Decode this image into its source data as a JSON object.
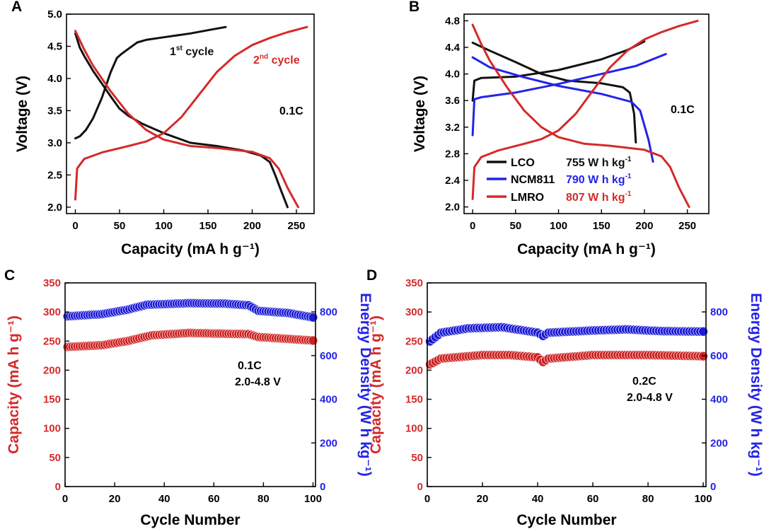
{
  "colors": {
    "black": "#111111",
    "red": "#d42a2a",
    "blue": "#2323e8",
    "red_marker": "#cc2222",
    "blue_marker": "#1b1bd6"
  },
  "chart_data": [
    {
      "id": "A",
      "type": "line",
      "panel_label": "A",
      "xlabel": "Capacity (mA h g⁻¹)",
      "ylabel": "Voltage (V)",
      "xlim": [
        -10,
        270
      ],
      "ylim": [
        1.9,
        5.0
      ],
      "xticks": [
        0,
        50,
        100,
        150,
        200,
        250
      ],
      "xtick_labels": [
        "0",
        "50",
        "100",
        "150",
        "200",
        "250"
      ],
      "yticks": [
        2.0,
        2.5,
        3.0,
        3.5,
        4.0,
        4.5,
        5.0
      ],
      "ytick_labels": [
        "2.0",
        "2.5",
        "3.0",
        "3.5",
        "4.0",
        "4.5",
        "5.0"
      ],
      "annotations": [
        {
          "id": "cycle1",
          "base": "1",
          "sup": "st",
          "tail": " cycle",
          "color": "black"
        },
        {
          "id": "cycle2",
          "base": "2",
          "sup": "nd",
          "tail": " cycle",
          "color": "red"
        },
        {
          "id": "rate",
          "text": "0.1C",
          "color": "black"
        }
      ],
      "series": [
        {
          "name": "1st cycle charge",
          "color": "black",
          "points": [
            [
              0,
              3.07
            ],
            [
              5,
              3.1
            ],
            [
              12,
              3.2
            ],
            [
              20,
              3.38
            ],
            [
              30,
              3.7
            ],
            [
              40,
              4.1
            ],
            [
              47,
              4.32
            ],
            [
              52,
              4.38
            ],
            [
              60,
              4.46
            ],
            [
              70,
              4.56
            ],
            [
              80,
              4.6
            ],
            [
              100,
              4.64
            ],
            [
              130,
              4.7
            ],
            [
              150,
              4.75
            ],
            [
              170,
              4.8
            ]
          ]
        },
        {
          "name": "1st cycle discharge",
          "color": "black",
          "points": [
            [
              0,
              4.7
            ],
            [
              5,
              4.48
            ],
            [
              10,
              4.35
            ],
            [
              20,
              4.12
            ],
            [
              30,
              3.92
            ],
            [
              40,
              3.72
            ],
            [
              50,
              3.53
            ],
            [
              60,
              3.42
            ],
            [
              75,
              3.3
            ],
            [
              100,
              3.15
            ],
            [
              130,
              3.0
            ],
            [
              160,
              2.95
            ],
            [
              190,
              2.88
            ],
            [
              210,
              2.8
            ],
            [
              220,
              2.7
            ],
            [
              226,
              2.5
            ],
            [
              232,
              2.28
            ],
            [
              240,
              2.0
            ]
          ]
        },
        {
          "name": "2nd cycle charge",
          "color": "red",
          "points": [
            [
              0,
              2.12
            ],
            [
              2,
              2.6
            ],
            [
              10,
              2.75
            ],
            [
              30,
              2.85
            ],
            [
              60,
              2.95
            ],
            [
              80,
              3.02
            ],
            [
              100,
              3.15
            ],
            [
              120,
              3.4
            ],
            [
              140,
              3.75
            ],
            [
              160,
              4.1
            ],
            [
              180,
              4.35
            ],
            [
              200,
              4.52
            ],
            [
              220,
              4.63
            ],
            [
              240,
              4.72
            ],
            [
              262,
              4.8
            ]
          ]
        },
        {
          "name": "2nd cycle discharge",
          "color": "red",
          "points": [
            [
              0,
              4.74
            ],
            [
              10,
              4.45
            ],
            [
              20,
              4.2
            ],
            [
              40,
              3.8
            ],
            [
              60,
              3.45
            ],
            [
              80,
              3.2
            ],
            [
              100,
              3.05
            ],
            [
              130,
              2.95
            ],
            [
              160,
              2.92
            ],
            [
              200,
              2.86
            ],
            [
              220,
              2.76
            ],
            [
              230,
              2.6
            ],
            [
              240,
              2.3
            ],
            [
              252,
              2.0
            ]
          ]
        }
      ]
    },
    {
      "id": "B",
      "type": "line",
      "panel_label": "B",
      "xlabel": "Capacity (mA h g⁻¹)",
      "ylabel": "Voltage (V)",
      "xlim": [
        -10,
        275
      ],
      "ylim": [
        1.9,
        4.9
      ],
      "xticks": [
        0,
        50,
        100,
        150,
        200,
        250
      ],
      "xtick_labels": [
        "0",
        "50",
        "100",
        "150",
        "200",
        "250"
      ],
      "yticks": [
        2.0,
        2.4,
        2.8,
        3.2,
        3.6,
        4.0,
        4.4,
        4.8
      ],
      "ytick_labels": [
        "2.0",
        "2.4",
        "2.8",
        "3.2",
        "3.6",
        "4.0",
        "4.4",
        "4.8"
      ],
      "annotations": [
        {
          "id": "rate",
          "text": "0.1C",
          "color": "black"
        }
      ],
      "legend": [
        {
          "name": "LCO",
          "color": "black",
          "energy": "755 W h kg",
          "sup": "-1"
        },
        {
          "name": "NCM811",
          "color": "blue",
          "energy": "790 W h kg",
          "sup": "-1"
        },
        {
          "name": "LMRO",
          "color": "red",
          "energy": "807 W h kg",
          "sup": "-1"
        }
      ],
      "series": [
        {
          "name": "LCO charge",
          "color": "black",
          "points": [
            [
              0,
              3.6
            ],
            [
              2,
              3.9
            ],
            [
              10,
              3.94
            ],
            [
              50,
              3.96
            ],
            [
              100,
              4.06
            ],
            [
              150,
              4.22
            ],
            [
              180,
              4.36
            ],
            [
              200,
              4.49
            ]
          ]
        },
        {
          "name": "LCO discharge",
          "color": "black",
          "points": [
            [
              0,
              4.47
            ],
            [
              20,
              4.35
            ],
            [
              50,
              4.18
            ],
            [
              80,
              4.0
            ],
            [
              110,
              3.9
            ],
            [
              150,
              3.86
            ],
            [
              175,
              3.8
            ],
            [
              183,
              3.72
            ],
            [
              188,
              3.4
            ],
            [
              190,
              2.97
            ]
          ]
        },
        {
          "name": "NCM811 charge",
          "color": "blue",
          "points": [
            [
              0,
              3.08
            ],
            [
              2,
              3.62
            ],
            [
              10,
              3.65
            ],
            [
              50,
              3.72
            ],
            [
              100,
              3.85
            ],
            [
              150,
              4.0
            ],
            [
              190,
              4.12
            ],
            [
              225,
              4.3
            ]
          ]
        },
        {
          "name": "NCM811 discharge",
          "color": "blue",
          "points": [
            [
              0,
              4.25
            ],
            [
              20,
              4.1
            ],
            [
              60,
              3.95
            ],
            [
              100,
              3.82
            ],
            [
              150,
              3.7
            ],
            [
              185,
              3.58
            ],
            [
              195,
              3.45
            ],
            [
              205,
              3.0
            ],
            [
              210,
              2.68
            ]
          ]
        },
        {
          "name": "LMRO charge",
          "color": "red",
          "points": [
            [
              0,
              2.12
            ],
            [
              2,
              2.6
            ],
            [
              10,
              2.75
            ],
            [
              30,
              2.85
            ],
            [
              60,
              2.95
            ],
            [
              80,
              3.02
            ],
            [
              100,
              3.15
            ],
            [
              120,
              3.4
            ],
            [
              140,
              3.75
            ],
            [
              160,
              4.1
            ],
            [
              180,
              4.35
            ],
            [
              200,
              4.52
            ],
            [
              220,
              4.63
            ],
            [
              240,
              4.72
            ],
            [
              262,
              4.8
            ]
          ]
        },
        {
          "name": "LMRO discharge",
          "color": "red",
          "points": [
            [
              0,
              4.74
            ],
            [
              10,
              4.45
            ],
            [
              20,
              4.2
            ],
            [
              40,
              3.8
            ],
            [
              60,
              3.45
            ],
            [
              80,
              3.2
            ],
            [
              100,
              3.05
            ],
            [
              130,
              2.95
            ],
            [
              160,
              2.92
            ],
            [
              200,
              2.86
            ],
            [
              220,
              2.76
            ],
            [
              230,
              2.6
            ],
            [
              240,
              2.3
            ],
            [
              252,
              2.0
            ]
          ]
        }
      ]
    },
    {
      "id": "C",
      "type": "scatter",
      "panel_label": "C",
      "xlabel": "Cycle Number",
      "ylabel_left": "Capacity (mA h g⁻¹)",
      "ylabel_right": "Energy Density (W h kg⁻¹)",
      "xlim": [
        0,
        101
      ],
      "ylim_left": [
        0,
        350
      ],
      "ylim_right": [
        0,
        933
      ],
      "xticks": [
        0,
        20,
        40,
        60,
        80,
        100
      ],
      "xtick_labels": [
        "0",
        "20",
        "40",
        "60",
        "80",
        "100"
      ],
      "yticks_left": [
        0,
        50,
        100,
        150,
        200,
        250,
        300,
        350
      ],
      "ytick_labels_left": [
        "0",
        "50",
        "100",
        "150",
        "200",
        "250",
        "300",
        "350"
      ],
      "yticks_right": [
        0,
        200,
        400,
        600,
        800
      ],
      "ytick_labels_right": [
        "0",
        "200",
        "400",
        "600",
        "800"
      ],
      "annotations": [
        {
          "id": "rate",
          "text": "0.1C",
          "color": "black"
        },
        {
          "id": "range",
          "text": "2.0-4.8 V",
          "color": "black"
        }
      ],
      "series": [
        {
          "name": "Capacity",
          "axis": "left",
          "color": "red",
          "key_points": [
            [
              1,
              240
            ],
            [
              15,
              243
            ],
            [
              25,
              250
            ],
            [
              35,
              260
            ],
            [
              50,
              264
            ],
            [
              60,
              263
            ],
            [
              74,
              262
            ],
            [
              78,
              257
            ],
            [
              100,
              251
            ]
          ]
        },
        {
          "name": "Energy Density",
          "axis": "right",
          "color": "blue",
          "key_points": [
            [
              1,
              780
            ],
            [
              15,
              790
            ],
            [
              25,
              810
            ],
            [
              33,
              833
            ],
            [
              50,
              840
            ],
            [
              65,
              838
            ],
            [
              74,
              830
            ],
            [
              78,
              805
            ],
            [
              90,
              795
            ],
            [
              100,
              775
            ]
          ]
        }
      ]
    },
    {
      "id": "D",
      "type": "scatter",
      "panel_label": "D",
      "xlabel": "Cycle Number",
      "ylabel_left": "Capacity (mA h g⁻¹)",
      "ylabel_right": "Energy Density (W h kg⁻¹)",
      "xlim": [
        0,
        101
      ],
      "ylim_left": [
        0,
        350
      ],
      "ylim_right": [
        0,
        933
      ],
      "xticks": [
        0,
        20,
        40,
        60,
        80,
        100
      ],
      "xtick_labels": [
        "0",
        "20",
        "40",
        "60",
        "80",
        "100"
      ],
      "yticks_left": [
        0,
        50,
        100,
        150,
        200,
        250,
        300,
        350
      ],
      "ytick_labels_left": [
        "0",
        "50",
        "100",
        "150",
        "200",
        "250",
        "300",
        "350"
      ],
      "yticks_right": [
        0,
        200,
        400,
        600,
        800
      ],
      "ytick_labels_right": [
        "0",
        "200",
        "400",
        "600",
        "800"
      ],
      "annotations": [
        {
          "id": "rate",
          "text": "0.2C",
          "color": "black"
        },
        {
          "id": "range",
          "text": "2.0-4.8 V",
          "color": "black"
        }
      ],
      "series": [
        {
          "name": "Capacity",
          "axis": "left",
          "color": "red",
          "key_points": [
            [
              1,
              210
            ],
            [
              5,
              220
            ],
            [
              20,
              226
            ],
            [
              30,
              226
            ],
            [
              40,
              222
            ],
            [
              42,
              214
            ],
            [
              44,
              220
            ],
            [
              60,
              226
            ],
            [
              80,
              226
            ],
            [
              100,
              224
            ]
          ]
        },
        {
          "name": "Energy Density",
          "axis": "right",
          "color": "blue",
          "key_points": [
            [
              1,
              665
            ],
            [
              5,
              705
            ],
            [
              15,
              725
            ],
            [
              27,
              730
            ],
            [
              35,
              715
            ],
            [
              40,
              705
            ],
            [
              42,
              690
            ],
            [
              44,
              705
            ],
            [
              60,
              715
            ],
            [
              72,
              720
            ],
            [
              85,
              712
            ],
            [
              100,
              710
            ]
          ]
        }
      ]
    }
  ]
}
